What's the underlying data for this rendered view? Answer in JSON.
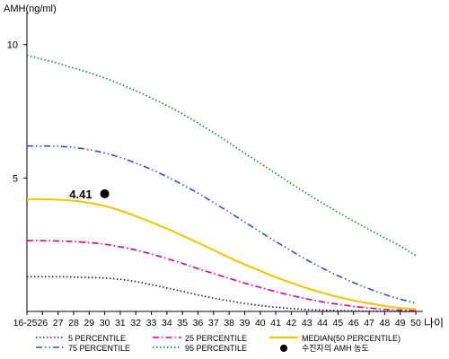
{
  "chart_data": {
    "type": "line",
    "ylabel": "AMH(ng/ml)",
    "xlabel": "나이",
    "ylim": [
      0,
      11
    ],
    "ytick_labels": [
      "5",
      "10"
    ],
    "yticks": [
      5,
      10
    ],
    "categories": [
      "16-25",
      "26",
      "27",
      "28",
      "29",
      "30",
      "31",
      "32",
      "33",
      "34",
      "35",
      "36",
      "37",
      "38",
      "39",
      "40",
      "41",
      "42",
      "43",
      "44",
      "45",
      "46",
      "47",
      "48",
      "49",
      "50"
    ],
    "series": [
      {
        "name": "5 PERCENTILE",
        "style": "dotted",
        "color": "#1a1a4e",
        "values": [
          1.3,
          1.3,
          1.3,
          1.29,
          1.27,
          1.25,
          1.2,
          1.12,
          1.0,
          0.88,
          0.75,
          0.62,
          0.5,
          0.4,
          0.3,
          0.22,
          0.16,
          0.11,
          0.07,
          0.05,
          0.03,
          0.02,
          0.01,
          0.01,
          0.0,
          0.0
        ]
      },
      {
        "name": "25 PERCENTILE",
        "style": "dashdot",
        "color": "#e0007a",
        "values": [
          2.65,
          2.65,
          2.64,
          2.62,
          2.58,
          2.52,
          2.42,
          2.3,
          2.15,
          1.98,
          1.8,
          1.6,
          1.42,
          1.24,
          1.06,
          0.9,
          0.74,
          0.6,
          0.47,
          0.36,
          0.27,
          0.19,
          0.13,
          0.08,
          0.05,
          0.03
        ]
      },
      {
        "name": "MEDIAN(50 PERCENTILE)",
        "style": "solid",
        "color": "#f2c400",
        "values": [
          4.2,
          4.2,
          4.19,
          4.15,
          4.07,
          3.95,
          3.78,
          3.57,
          3.34,
          3.1,
          2.84,
          2.57,
          2.3,
          2.02,
          1.76,
          1.52,
          1.28,
          1.07,
          0.87,
          0.7,
          0.54,
          0.41,
          0.3,
          0.2,
          0.13,
          0.08
        ]
      },
      {
        "name": "75 PERCENTILE",
        "style": "dashdotdot",
        "color": "#3a4fc4",
        "values": [
          6.2,
          6.2,
          6.19,
          6.15,
          6.06,
          5.94,
          5.77,
          5.56,
          5.32,
          5.05,
          4.75,
          4.43,
          4.08,
          3.72,
          3.35,
          2.98,
          2.62,
          2.27,
          1.93,
          1.62,
          1.34,
          1.08,
          0.85,
          0.64,
          0.46,
          0.32
        ]
      },
      {
        "name": "95 PERCENTILE",
        "style": "dotted",
        "color": "#1f7a3a",
        "values": [
          9.6,
          9.45,
          9.3,
          9.12,
          8.95,
          8.75,
          8.52,
          8.27,
          8.0,
          7.72,
          7.4,
          7.06,
          6.7,
          6.32,
          5.93,
          5.55,
          5.17,
          4.79,
          4.42,
          4.06,
          3.72,
          3.39,
          3.07,
          2.76,
          2.45,
          2.1
        ]
      }
    ],
    "annotations": [
      {
        "name": "수진자의 AMH 농도",
        "x": "30",
        "y": 4.41,
        "label": "4.41"
      }
    ],
    "legend_placement": "bottom"
  }
}
